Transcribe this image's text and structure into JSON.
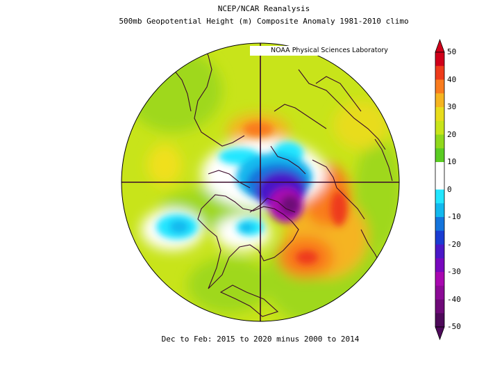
{
  "title_line1": "NCEP/NCAR Reanalysis",
  "title_line2": "500mb Geopotential Height (m) Composite Anomaly 1981-2010 climo",
  "credit": "NOAA Physical Sciences Laboratory",
  "footer": "Dec to Feb: 2015 to 2020 minus 2000 to 2014",
  "colorbar": {
    "ticks": [
      "50",
      "40",
      "30",
      "20",
      "10",
      "0",
      "-10",
      "-20",
      "-30",
      "-40",
      "-50"
    ],
    "colors": [
      "#d0001a",
      "#ee3b1b",
      "#f97c1e",
      "#f5b420",
      "#e8dc1c",
      "#c8e41a",
      "#90d81c",
      "#5acc22",
      "#ffffff",
      "#ffffff",
      "#22e6ff",
      "#12b8ee",
      "#1474dc",
      "#1a3cd2",
      "#4a18c8",
      "#7808be",
      "#a808b0",
      "#8c0a96",
      "#6e0a78",
      "#4e0a5a"
    ]
  }
}
